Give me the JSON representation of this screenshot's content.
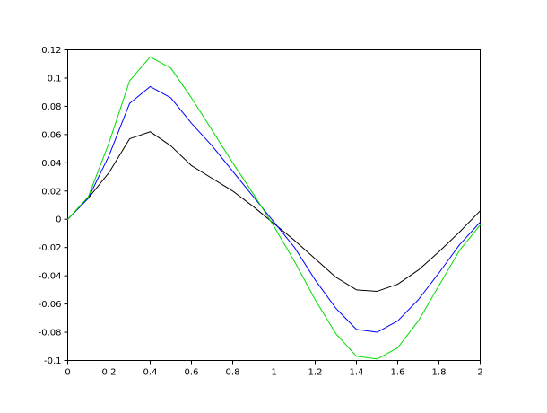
{
  "figure": {
    "background": "#ffffff",
    "frame_color": "#000000"
  },
  "chart_data": {
    "type": "line",
    "title": "",
    "xlabel": "",
    "ylabel": "",
    "grid": false,
    "legend": null,
    "xlim": [
      0,
      2
    ],
    "ylim": [
      -0.1,
      0.12
    ],
    "x_ticks": {
      "values": [
        0,
        0.2,
        0.4,
        0.6,
        0.8,
        1,
        1.2,
        1.4,
        1.6,
        1.8,
        2
      ],
      "labels": [
        "0",
        "0.2",
        "0.4",
        "0.6",
        "0.8",
        "1",
        "1.2",
        "1.4",
        "1.6",
        "1.8",
        "2"
      ]
    },
    "y_ticks": {
      "values": [
        0.12,
        0.1,
        0.08,
        0.06,
        0.04,
        0.02,
        0,
        -0.02,
        -0.04,
        -0.06,
        -0.08,
        -0.1
      ],
      "labels": [
        "0.12",
        "0.1",
        "0.08",
        "0.06",
        "0.04",
        "0.02",
        "0",
        "-0.02",
        "-0.04",
        "-0.06",
        "-0.08",
        "-0.1"
      ]
    },
    "x": [
      0,
      0.1,
      0.2,
      0.3,
      0.4,
      0.5,
      0.6,
      0.7,
      0.8,
      0.9,
      1.0,
      1.1,
      1.2,
      1.3,
      1.4,
      1.5,
      1.6,
      1.7,
      1.8,
      1.9,
      2.0
    ],
    "series": [
      {
        "name": "series-black",
        "color": "#000000",
        "values": [
          0,
          0.015,
          0.033,
          0.057,
          0.062,
          0.052,
          0.038,
          0.029,
          0.02,
          0.009,
          -0.003,
          -0.015,
          -0.028,
          -0.041,
          -0.05,
          -0.051,
          -0.046,
          -0.036,
          -0.023,
          -0.009,
          0.006
        ]
      },
      {
        "name": "series-blue",
        "color": "#0000ff",
        "values": [
          0,
          0.015,
          0.045,
          0.082,
          0.094,
          0.086,
          0.068,
          0.052,
          0.034,
          0.016,
          -0.002,
          -0.02,
          -0.043,
          -0.063,
          -0.078,
          -0.08,
          -0.072,
          -0.057,
          -0.038,
          -0.018,
          -0.002
        ]
      },
      {
        "name": "series-green",
        "color": "#00dd00",
        "values": [
          0,
          0.016,
          0.054,
          0.098,
          0.115,
          0.107,
          0.086,
          0.063,
          0.04,
          0.018,
          -0.005,
          -0.03,
          -0.057,
          -0.081,
          -0.097,
          -0.099,
          -0.091,
          -0.072,
          -0.047,
          -0.022,
          -0.004
        ]
      }
    ]
  }
}
